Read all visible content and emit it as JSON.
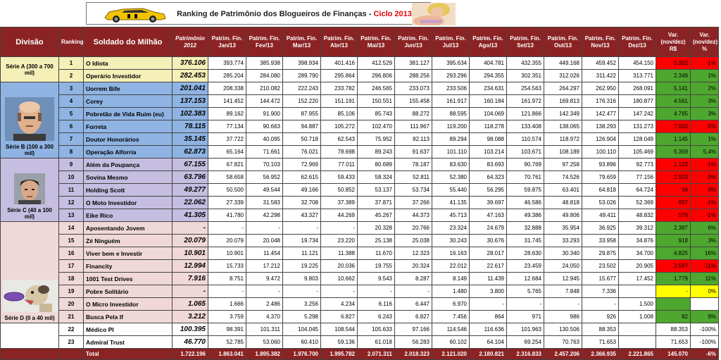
{
  "header": {
    "title": "Ranking de Patrimônio dos Blogueiros de Finanças - ",
    "cycle": "Ciclo 2013"
  },
  "columns": {
    "divisao": "Divisão",
    "ranking": "Ranking",
    "soldado": "Soldado do Milhão",
    "patrimonio": "Patrimônio 2012",
    "months": [
      "Patrim. Fin. Jan/13",
      "Patrim. Fin. Fev/13",
      "Patrim. Fin. Mar/13",
      "Patrim. Fin. Abr/13",
      "Patrim. Fin. Mai/13",
      "Patrim. Fin. Jun/13",
      "Patrim. Fin. Jul/13",
      "Patrim. Fin. Ago/13",
      "Patrim. Fin. Set/13",
      "Patrim. Fin. Out/13",
      "Patrim. Fin. Nov/13",
      "Patrim. Fin. Dez/13"
    ],
    "var_rs": "Var. (nov/dez) R$",
    "var_pct": "Var. (nov/dez) %"
  },
  "groups": [
    {
      "label": "Série A (300 a 700 mil)",
      "rows": 2,
      "cls": "A",
      "icon": "none"
    },
    {
      "label": "Série B (100 a 300 mil)",
      "rows": 6,
      "cls": "B",
      "icon": "bald-man-photo"
    },
    {
      "label": "Série C (40 a 100 mil)",
      "rows": 5,
      "cls": "C",
      "icon": "young-man-photo"
    },
    {
      "label": "Série D (0 a 40 mil)",
      "rows": 8,
      "cls": "D",
      "icon": "dog-frisbee-photo"
    },
    {
      "label": "",
      "rows": 2,
      "cls": "E",
      "icon": "none"
    }
  ],
  "rows": [
    {
      "rank": "1",
      "name": "O Idiota",
      "p2012": "376.106",
      "m": [
        "393.774",
        "385.938",
        "398.934",
        "401.416",
        "412.529",
        "381.127",
        "395.634",
        "404.781",
        "432.355",
        "449.168",
        "459.452",
        "454.150"
      ],
      "var": "5.302",
      "pct": "-1%",
      "vc": "neg",
      "pc": "neg"
    },
    {
      "rank": "2",
      "name": "Operário Investidor",
      "p2012": "282.453",
      "m": [
        "285.204",
        "284.080",
        "289.790",
        "295.864",
        "296.806",
        "288.256",
        "293.296",
        "294.355",
        "302.351",
        "312.026",
        "311.422",
        "313.771"
      ],
      "var": "2.349",
      "pct": "1%",
      "vc": "pos",
      "pc": "pos"
    },
    {
      "rank": "3",
      "name": "Uorrem Bife",
      "p2012": "201.041",
      "m": [
        "208.338",
        "210.082",
        "222.243",
        "233.782",
        "246.565",
        "233.073",
        "233.506",
        "234.631",
        "254.563",
        "264.297",
        "262.950",
        "268.091"
      ],
      "var": "5.141",
      "pct": "2%",
      "vc": "pos",
      "pc": "pos"
    },
    {
      "rank": "4",
      "name": "Corey",
      "p2012": "137.153",
      "m": [
        "141.452",
        "144.472",
        "152.220",
        "151.191",
        "150.551",
        "155.458",
        "161.917",
        "160.184",
        "161.972",
        "169.813",
        "176.316",
        "180.877"
      ],
      "var": "4.561",
      "pct": "3%",
      "vc": "pos",
      "pc": "pos"
    },
    {
      "rank": "5",
      "name": "Pobretão de Vida Ruim (eu)",
      "p2012": "102.383",
      "m": [
        "89.162",
        "91.900",
        "87.955",
        "85.106",
        "85.743",
        "88.272",
        "88.595",
        "104.069",
        "121.866",
        "142.349",
        "142.477",
        "147.242"
      ],
      "var": "4.765",
      "pct": "3%",
      "vc": "pos",
      "pc": "pos"
    },
    {
      "rank": "6",
      "name": "Forreta",
      "p2012": "78.115",
      "m": [
        "77.134",
        "90.663",
        "94.887",
        "105.272",
        "102.470",
        "111.967",
        "119.200",
        "118.278",
        "133.408",
        "138.065",
        "138.293",
        "131.273"
      ],
      "var": "7.020",
      "pct": "-5%",
      "vc": "neg",
      "pc": "neg"
    },
    {
      "rank": "7",
      "name": "Doutor Honorários",
      "p2012": "35.145",
      "m": [
        "37.722",
        "40.095",
        "50.718",
        "62.543",
        "75.952",
        "82.113",
        "89.294",
        "98.088",
        "110.574",
        "118.972",
        "126.904",
        "128.049"
      ],
      "var": "1.145",
      "pct": "1%",
      "vc": "pos",
      "pc": "pos"
    },
    {
      "rank": "8",
      "name": "Operação Alforria",
      "p2012": "62.873",
      "m": [
        "65.164",
        "71.661",
        "76.021",
        "78.698",
        "89.243",
        "91.637",
        "101.110",
        "103.214",
        "103.671",
        "108.189",
        "100.110",
        "105.469"
      ],
      "var": "5.359",
      "pct": "5,4%",
      "vc": "pos",
      "pc": "pos"
    },
    {
      "rank": "9",
      "name": "Além da Poupança",
      "p2012": "67.155",
      "m": [
        "67.821",
        "70.103",
        "72.969",
        "77.011",
        "80.689",
        "78.187",
        "83.630",
        "83.693",
        "90.769",
        "97.258",
        "93.896",
        "92.773"
      ],
      "var": "1.123",
      "pct": "-1%",
      "vc": "neg",
      "pc": "neg"
    },
    {
      "rank": "10",
      "name": "Sovina Mesmo",
      "p2012": "63.796",
      "m": [
        "58.658",
        "56.952",
        "62.615",
        "59.433",
        "58.324",
        "52.811",
        "52.380",
        "64.323",
        "70.761",
        "74.526",
        "79.659",
        "77.156"
      ],
      "var": "2.503",
      "pct": "-3%",
      "vc": "neg",
      "pc": "neg"
    },
    {
      "rank": "11",
      "name": "Holding Scott",
      "p2012": "49.277",
      "m": [
        "50.500",
        "49.544",
        "49.166",
        "50.852",
        "53.137",
        "53.734",
        "55.440",
        "56.295",
        "59.875",
        "63.401",
        "64.818",
        "64.724"
      ],
      "var": "94",
      "pct": "0%",
      "vc": "neg",
      "pc": "neg"
    },
    {
      "rank": "12",
      "name": "O Moto Investidor",
      "p2012": "22.062",
      "m": [
        "27.339",
        "31.583",
        "32.708",
        "37.389",
        "37.871",
        "37.266",
        "41.135",
        "39.697",
        "46.586",
        "48.818",
        "53.026",
        "52.369"
      ],
      "var": "657",
      "pct": "-1%",
      "vc": "neg",
      "pc": "neg"
    },
    {
      "rank": "13",
      "name": "Eike Rico",
      "p2012": "41.305",
      "m": [
        "41.780",
        "42.298",
        "43.327",
        "44.269",
        "45.267",
        "44.373",
        "45.713",
        "47.163",
        "49.386",
        "49.806",
        "49.411",
        "48.832"
      ],
      "var": "579",
      "pct": "-1%",
      "vc": "neg",
      "pc": "neg"
    },
    {
      "rank": "14",
      "name": "Aposentando Jovem",
      "p2012": "-",
      "m": [
        "-",
        "-",
        "-",
        "-",
        "20.328",
        "20.766",
        "23.324",
        "24.679",
        "32.888",
        "35.954",
        "36.925",
        "39.312"
      ],
      "var": "2.387",
      "pct": "6%",
      "vc": "pos",
      "pc": "pos"
    },
    {
      "rank": "15",
      "name": "Zé Ninguém",
      "p2012": "20.079",
      "m": [
        "20.079",
        "20.048",
        "19.734",
        "23.220",
        "25.138",
        "25.038",
        "30.243",
        "30.676",
        "31.745",
        "33.293",
        "33.958",
        "34.876"
      ],
      "var": "918",
      "pct": "3%",
      "vc": "pos",
      "pc": "pos"
    },
    {
      "rank": "16",
      "name": "Viver bem e Investir",
      "p2012": "10.901",
      "m": [
        "10.901",
        "11.454",
        "11.121",
        "11.388",
        "11.670",
        "12.323",
        "16.163",
        "28.017",
        "28.630",
        "30.340",
        "29.875",
        "34.700"
      ],
      "var": "4.825",
      "pct": "16%",
      "vc": "pos",
      "pc": "pos"
    },
    {
      "rank": "17",
      "name": "Financity",
      "p2012": "12.994",
      "m": [
        "15.733",
        "17.212",
        "19.225",
        "20.036",
        "19.755",
        "20.324",
        "22.012",
        "22.617",
        "23.459",
        "24.050",
        "23.502",
        "20.905"
      ],
      "var": "2.597",
      "pct": "-11%",
      "vc": "neg",
      "pc": "neg"
    },
    {
      "rank": "18",
      "name": "1001 Test Drives",
      "p2012": "7.916",
      "m": [
        "8.751",
        "9.472",
        "9.803",
        "10.662",
        "9.543",
        "8.287",
        "8.149",
        "11.439",
        "12.684",
        "12.945",
        "15.677",
        "17.452"
      ],
      "var": "1.779",
      "pct": "11%",
      "vc": "pos",
      "pc": "pos"
    },
    {
      "rank": "19",
      "name": "Pobre Solitário",
      "p2012": "-",
      "m": [
        "-",
        "-",
        "-",
        "-",
        "-",
        "-",
        "1.480",
        "3.800",
        "5.765",
        "7.848",
        "7.336",
        ""
      ],
      "var": "-",
      "pct": "0%",
      "vc": "neu",
      "pc": "neu"
    },
    {
      "rank": "20",
      "name": "O Micro Investidor",
      "p2012": "1.065",
      "m": [
        "1.666",
        "2.486",
        "3.256",
        "4.234",
        "6.116",
        "6.447",
        "6.970",
        "-",
        "-",
        "-",
        "-",
        "1.500"
      ],
      "var": "",
      "pct": "",
      "vc": "pos",
      "pc": "none"
    },
    {
      "rank": "21",
      "name": "Busca Pela If",
      "p2012": "3.212",
      "m": [
        "3.759",
        "4.370",
        "5.298",
        "6.827",
        "6.243",
        "6.827",
        "7.456",
        "864",
        "971",
        "986",
        "926",
        "1.008"
      ],
      "var": "82",
      "pct": "9%",
      "vc": "pos",
      "pc": "pos"
    },
    {
      "rank": "22",
      "name": "Médico PI",
      "p2012": "100.395",
      "m": [
        "98.391",
        "101.311",
        "104.045",
        "108.544",
        "105.633",
        "97.166",
        "114.546",
        "116.636",
        "101.963",
        "130.506",
        "88.353",
        ""
      ],
      "var": "88.353",
      "pct": "-100%",
      "vc": "none",
      "pc": "none"
    },
    {
      "rank": "23",
      "name": "Admiral Trust",
      "p2012": "46.770",
      "m": [
        "52.785",
        "53.060",
        "60.410",
        "59.136",
        "61.018",
        "56.283",
        "60.102",
        "64.104",
        "69.254",
        "70.763",
        "71.653",
        ""
      ],
      "var": "71.653",
      "pct": "-100%",
      "vc": "none",
      "pc": "none"
    }
  ],
  "total": {
    "label": "Total",
    "p2012": "1.722.196",
    "m": [
      "1.863.041",
      "1.895.382",
      "1.976.700",
      "1.995.782",
      "2.071.311",
      "2.018.323",
      "2.121.020",
      "2.180.821",
      "2.316.833",
      "2.457.206",
      "2.366.935",
      "2.221.865"
    ],
    "var": "145.070",
    "pct": "-6%"
  }
}
